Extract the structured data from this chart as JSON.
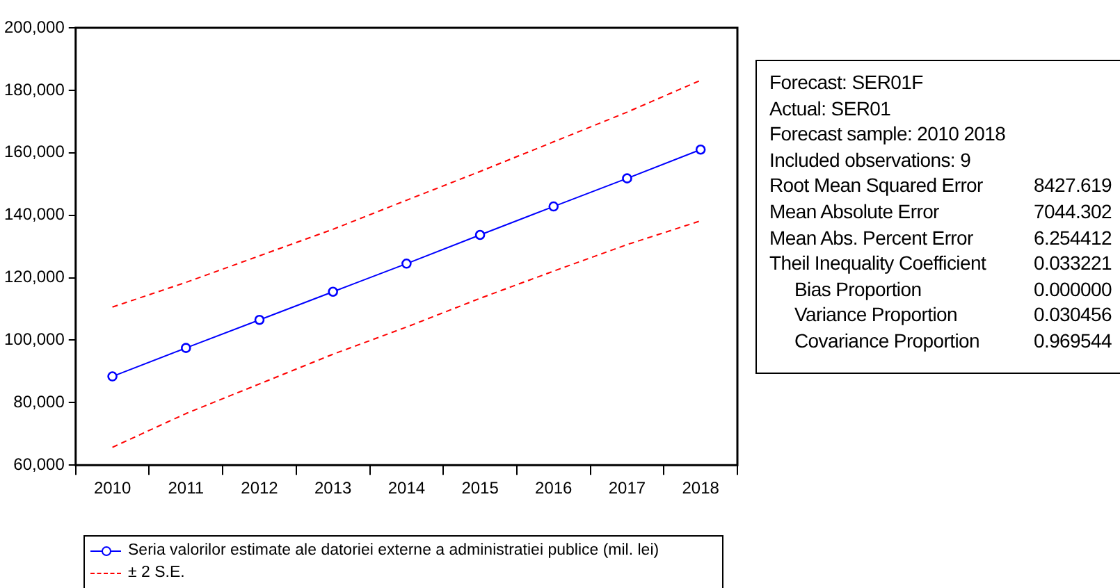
{
  "chart_data": {
    "type": "line",
    "categories": [
      "2010",
      "2011",
      "2012",
      "2013",
      "2014",
      "2015",
      "2016",
      "2017",
      "2018"
    ],
    "series": [
      {
        "name": "Seria valorilor estimate ale datoriei externe a administratiei publice (mil. lei)",
        "color": "#0000ff",
        "values": [
          88400,
          97500,
          106500,
          115500,
          124500,
          133700,
          142800,
          151800,
          161000
        ],
        "marker": "circle",
        "line_style": "solid"
      },
      {
        "name": "± 2 S.E.",
        "color": "#ff0000",
        "values": [
          110600,
          118500,
          127000,
          135500,
          144800,
          154000,
          163500,
          173000,
          183200
        ],
        "marker": "none",
        "line_style": "dashed"
      },
      {
        "color": "#ff0000",
        "values": [
          65700,
          76500,
          86000,
          95500,
          104200,
          113400,
          122100,
          130600,
          138200
        ],
        "marker": "none",
        "line_style": "dashed"
      }
    ],
    "ylim": [
      60000,
      200000
    ],
    "yticks": [
      {
        "value": 60000,
        "label": "60,000"
      },
      {
        "value": 80000,
        "label": "80,000"
      },
      {
        "value": 100000,
        "label": "100,000"
      },
      {
        "value": 120000,
        "label": "120,000"
      },
      {
        "value": 140000,
        "label": "140,000"
      },
      {
        "value": 160000,
        "label": "160,000"
      },
      {
        "value": 180000,
        "label": "180,000"
      },
      {
        "value": 200000,
        "label": "200,000"
      }
    ],
    "grid": false,
    "legend": "bottom",
    "annotations": [
      "Forecast: SER01F",
      "Actual: SER01",
      "Forecast sample: 2010 2018",
      "Included observations: 9",
      "Root Mean Squared Error",
      "8427.619",
      "Mean Absolute Error",
      "7044.302",
      "Mean Abs. Percent Error",
      "6.254412",
      "Theil Inequality Coefficient",
      "0.033221",
      "Bias Proportion",
      "0.000000",
      "Variance Proportion",
      "0.030456",
      "Covariance Proportion",
      "0.969544"
    ]
  }
}
